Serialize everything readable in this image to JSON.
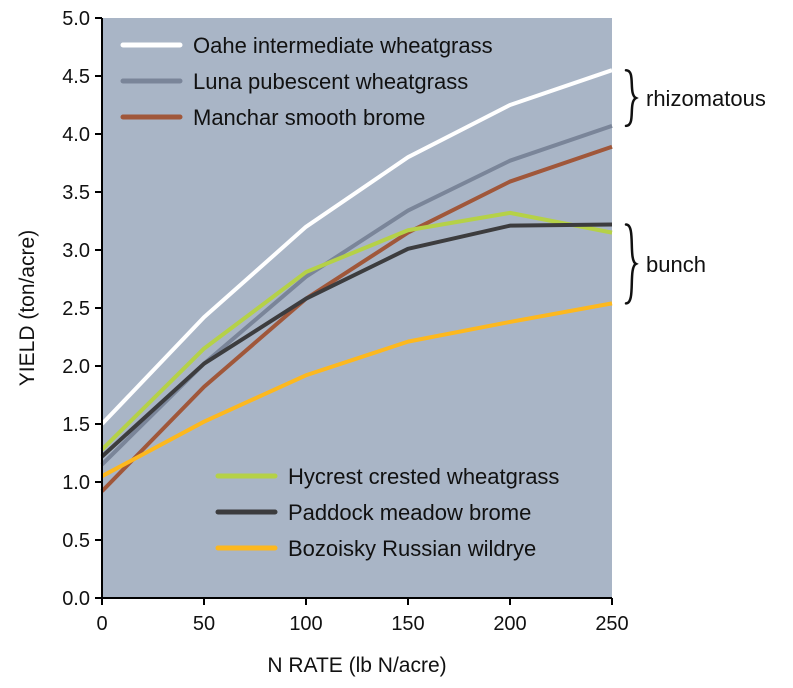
{
  "chart_data": {
    "type": "line",
    "title": "",
    "xlabel": "N RATE (lb N/acre)",
    "ylabel": "YIELD (ton/acre)",
    "xlim": [
      0,
      250
    ],
    "ylim": [
      0,
      5
    ],
    "x": [
      0,
      50,
      100,
      150,
      200,
      250
    ],
    "x_ticks": [
      "0",
      "50",
      "100",
      "150",
      "200",
      "250"
    ],
    "y_ticks": [
      "0.0",
      "0.5",
      "1.0",
      "1.5",
      "2.0",
      "2.5",
      "3.0",
      "3.5",
      "4.0",
      "4.5",
      "5.0"
    ],
    "grid": false,
    "background_color": "#a9b5c6",
    "series": [
      {
        "name": "Oahe intermediate wheatgrass",
        "color": "#ffffff",
        "values": [
          1.5,
          2.42,
          3.2,
          3.8,
          4.25,
          4.55
        ]
      },
      {
        "name": "Luna pubescent wheatgrass",
        "color": "#7a8599",
        "values": [
          1.15,
          2.02,
          2.77,
          3.34,
          3.77,
          4.07
        ]
      },
      {
        "name": "Manchar smooth brome",
        "color": "#a0573a",
        "values": [
          0.92,
          1.82,
          2.58,
          3.15,
          3.59,
          3.89
        ]
      },
      {
        "name": "Hycrest crested wheatgrass",
        "color": "#b5d147",
        "values": [
          1.28,
          2.15,
          2.81,
          3.17,
          3.32,
          3.15
        ]
      },
      {
        "name": "Paddock meadow brome",
        "color": "#3c3c3e",
        "values": [
          1.22,
          2.02,
          2.58,
          3.01,
          3.21,
          3.22
        ]
      },
      {
        "name": "Bozoisky Russian wildrye",
        "color": "#fdb81e",
        "values": [
          1.05,
          1.52,
          1.92,
          2.21,
          2.38,
          2.54
        ]
      }
    ],
    "legend_groups": [
      {
        "placement": "top-left",
        "series": [
          0,
          1,
          2
        ]
      },
      {
        "placement": "bottom-left",
        "series": [
          3,
          4,
          5
        ]
      }
    ],
    "annotations": [
      {
        "text": "rhizomatous",
        "brace_from": 4.55,
        "brace_to": 4.07
      },
      {
        "text": "bunch",
        "brace_from": 3.22,
        "brace_to": 2.54
      }
    ]
  }
}
